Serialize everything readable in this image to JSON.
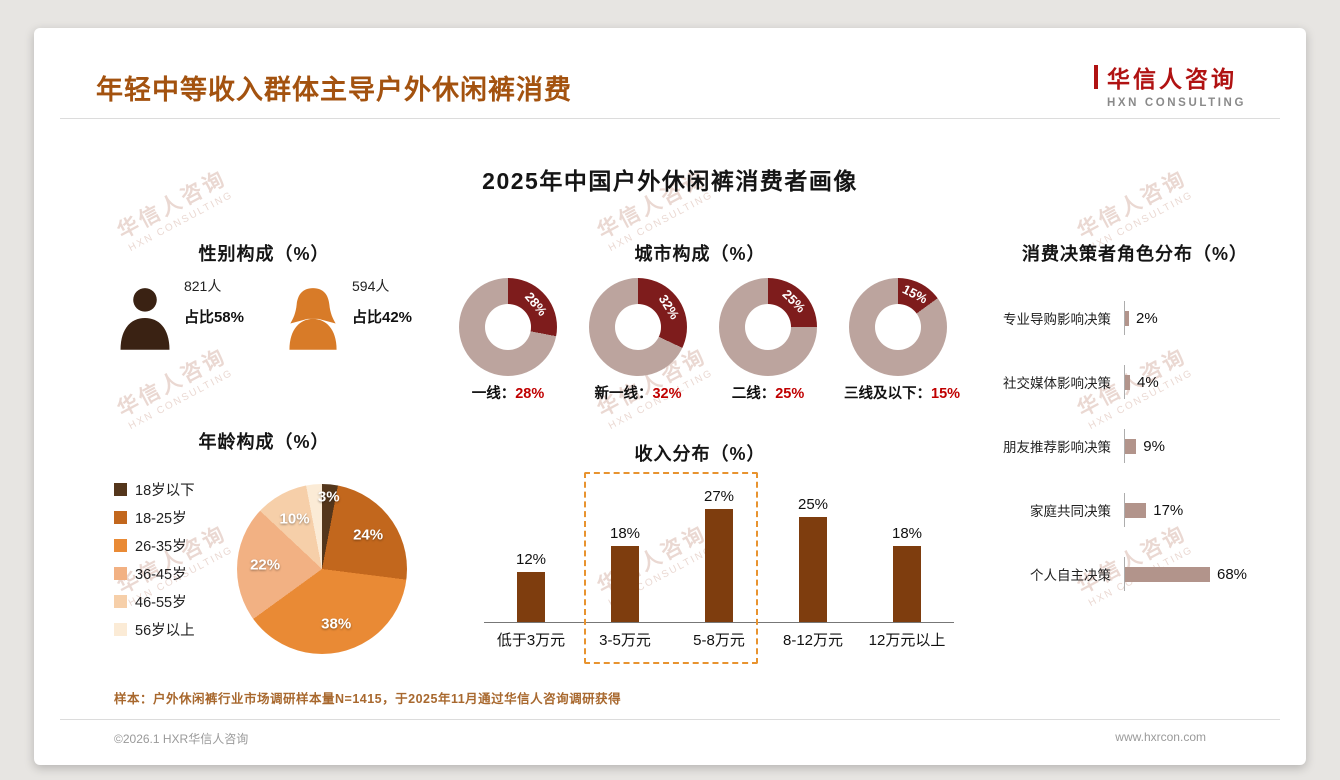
{
  "header": {
    "title": "年轻中等收入群体主导户外休闲裤消费",
    "logo_cn": "华信人咨询",
    "logo_en": "HXN CONSULTING"
  },
  "main_title": "2025年中国户外休闲裤消费者画像",
  "watermark": {
    "cn": "华信人咨询",
    "en": "HXN CONSULTING"
  },
  "note": "样本：户外休闲裤行业市场调研样本量N=1415，于2025年11月通过华信人咨询调研获得",
  "footer": {
    "left": "©2026.1 HXR华信人咨询",
    "right": "www.hxrcon.com"
  },
  "colors": {
    "accent": "#A3520F",
    "logo_red": "#B01212",
    "value_red": "#C00000",
    "income_bar": "#7E3D0E",
    "decision_bar": "#B2948B"
  },
  "chart_data": [
    {
      "id": "gender",
      "type": "table",
      "title": "性别构成（%）",
      "rows": [
        {
          "gender": "男",
          "count": "821人",
          "share": "占比58%",
          "color": "#3A2213"
        },
        {
          "gender": "女",
          "count": "594人",
          "share": "占比42%",
          "color": "#D87B28"
        }
      ]
    },
    {
      "id": "city",
      "type": "pie",
      "title": "城市构成（%）",
      "donuts": [
        {
          "label": "一线",
          "value": 28
        },
        {
          "label": "新一线",
          "value": 32
        },
        {
          "label": "二线",
          "value": 25
        },
        {
          "label": "三线及以下",
          "value": 15
        }
      ],
      "colors": {
        "slice": "#7E1C1C",
        "rest": "#BCA49E"
      }
    },
    {
      "id": "age",
      "type": "pie",
      "title": "年龄构成（%）",
      "categories": [
        "18岁以下",
        "18-25岁",
        "26-35岁",
        "36-45岁",
        "46-55岁",
        "56岁以上"
      ],
      "values": [
        3,
        24,
        38,
        22,
        10,
        3
      ],
      "colors": [
        "#54361B",
        "#C2671D",
        "#E98A35",
        "#F2B183",
        "#F6CFA9",
        "#FBEBD6"
      ],
      "labeled": [
        true,
        true,
        true,
        true,
        true,
        false
      ]
    },
    {
      "id": "income",
      "type": "bar",
      "title": "收入分布（%）",
      "categories": [
        "低于3万元",
        "3-5万元",
        "5-8万元",
        "8-12万元",
        "12万元以上"
      ],
      "values": [
        12,
        18,
        27,
        25,
        18
      ],
      "highlight_range": [
        1,
        2
      ],
      "ylim": [
        0,
        30
      ]
    },
    {
      "id": "decision",
      "type": "bar",
      "orientation": "horizontal",
      "title": "消费决策者角色分布（%）",
      "categories": [
        "专业导购影响决策",
        "社交媒体影响决策",
        "朋友推荐影响决策",
        "家庭共同决策",
        "个人自主决策"
      ],
      "values": [
        2,
        4,
        9,
        17,
        68
      ],
      "xlim": [
        0,
        100
      ]
    }
  ]
}
